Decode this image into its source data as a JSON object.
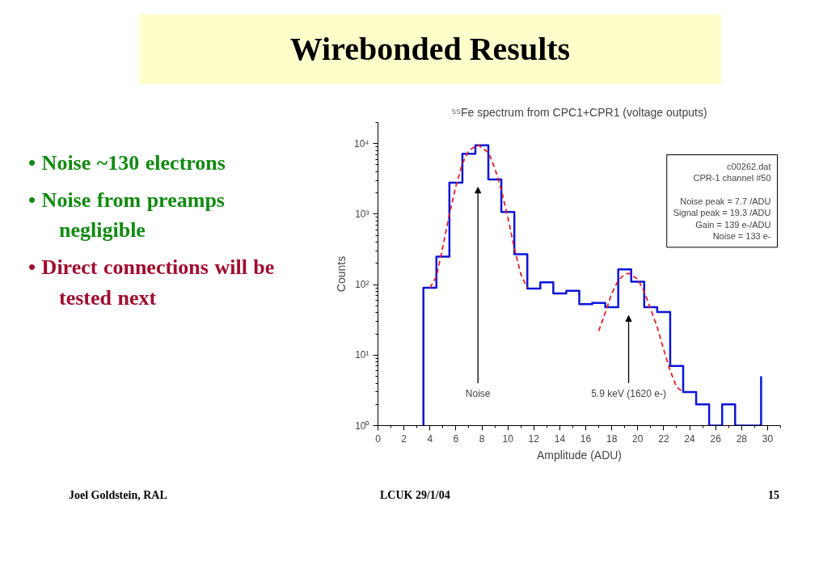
{
  "chart_data": {
    "type": "histogram",
    "title": "Wirebonded Results",
    "subtitle": "⁵⁵Fe spectrum from CPC1+CPR1 (voltage outputs)",
    "xlabel": "Amplitude (ADU)",
    "ylabel": "Counts",
    "bins": [
      3.5,
      4.5,
      5.5,
      6.5,
      7.5,
      8.5,
      9.5,
      10.5,
      11.5,
      12.5,
      13.5,
      14.5,
      15.5,
      16.5,
      17.5,
      18.5,
      19.5,
      20.5,
      21.5,
      22.5,
      23.5,
      24.5,
      25.5,
      26.5,
      27.5,
      28.5,
      29.5
    ],
    "values": [
      90,
      250,
      2800,
      7200,
      9500,
      3100,
      1070,
      270,
      88,
      108,
      75,
      82,
      53,
      55,
      48,
      165,
      110,
      48,
      41,
      7,
      3,
      2,
      1,
      2,
      1,
      1
    ],
    "color": "#0a14d8",
    "series": [
      {
        "type": "line",
        "color": "#0a14d8",
        "x": [
          29.5,
          29.5
        ],
        "values": [
          1,
          5
        ],
        "line_style": "solid"
      },
      {
        "type": "line",
        "color": "#e0202a",
        "line_style": "dashed",
        "x": [
          4.0,
          4.5,
          5.0,
          5.5,
          6.0,
          6.5,
          7.0,
          7.7,
          8.5,
          9.0,
          9.5,
          10.0,
          10.5,
          11.0,
          11.5
        ],
        "values": [
          90,
          130,
          350,
          1000,
          2500,
          5200,
          8000,
          9600,
          7500,
          4500,
          2200,
          900,
          330,
          140,
          90
        ]
      },
      {
        "type": "line",
        "color": "#e0202a",
        "line_style": "dashed",
        "x": [
          17.0,
          17.5,
          18.0,
          18.5,
          19.0,
          19.3,
          20.0,
          20.5,
          21.0,
          21.5,
          22.0,
          22.5,
          23.0,
          23.5
        ],
        "values": [
          22,
          40,
          75,
          115,
          140,
          145,
          120,
          80,
          45,
          25,
          12,
          6,
          3.5,
          3
        ]
      }
    ],
    "xlim": [
      0,
      31
    ],
    "ylim": [
      1,
      20000
    ],
    "xticks": [
      0,
      2,
      4,
      6,
      8,
      10,
      12,
      14,
      16,
      18,
      20,
      22,
      24,
      26,
      28,
      30
    ],
    "yticks": [
      {
        "value": 1,
        "label": "10⁰"
      },
      {
        "value": 10,
        "label": "10¹"
      },
      {
        "value": 100,
        "label": "10²"
      },
      {
        "value": 1000,
        "label": "10³"
      },
      {
        "value": 10000,
        "label": "10⁴"
      }
    ],
    "log": "y",
    "grid": false,
    "annotations": [
      "• Noise ~130 electrons",
      "• Noise from preamps negligible",
      "• Direct connections will be tested next",
      "c00262.dat\nCPR-1 channel #50\n\nNoise peak = 7.7 /ADU\nSignal peak = 19.3 /ADU\nGain = 139 e-/ADU\nNoise = 133 e-",
      "Joel Goldstein, RAL",
      "LCUK 29/1/04",
      "15",
      "Noise",
      "5.9 keV (1620 e-)"
    ]
  }
}
